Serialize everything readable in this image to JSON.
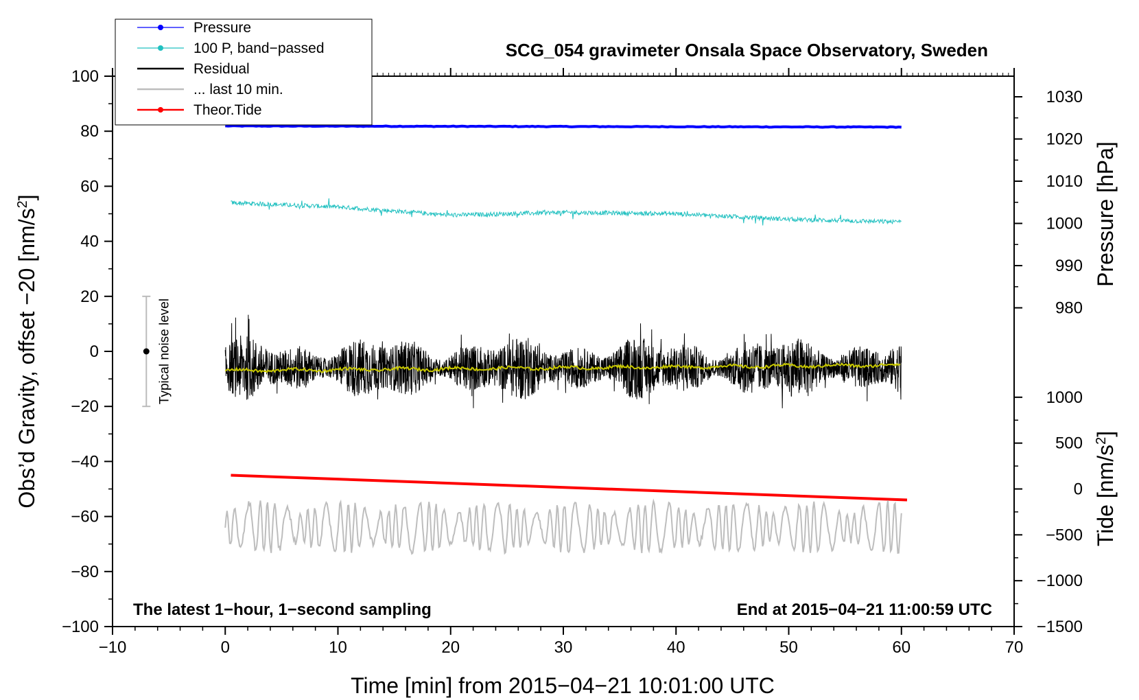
{
  "chart_data": {
    "type": "line",
    "title": "SCG_054 gravimeter Onsala Space Observatory, Sweden",
    "xlabel": "Time [min] from 2015−04−21 10:01:00 UTC",
    "ylabel": "Obs’d Gravity, offset −20 [nm/s²]",
    "ylabel_main": "Obs’d Gravity, offset −20 [nm/s",
    "ylabel_sup": "2",
    "ylabel_tail": "]",
    "xlim": [
      -10,
      70
    ],
    "ylim": [
      -100,
      100
    ],
    "x_ticks": [
      -10,
      0,
      10,
      20,
      30,
      40,
      50,
      60,
      70
    ],
    "x_tick_labels": [
      "−10",
      "0",
      "10",
      "20",
      "30",
      "40",
      "50",
      "60",
      "70"
    ],
    "y_ticks": [
      -100,
      -80,
      -60,
      -40,
      -20,
      0,
      20,
      40,
      60,
      80,
      100
    ],
    "y_tick_labels": [
      "−100",
      "−80",
      "−60",
      "−40",
      "−20",
      "0",
      "20",
      "40",
      "60",
      "80",
      "100"
    ],
    "right_axes": {
      "pressure": {
        "label": "Pressure [hPa]",
        "ticks": [
          980,
          990,
          1000,
          1010,
          1020,
          1030
        ],
        "tick_labels": [
          "980",
          "990",
          "1000",
          "1010",
          "1020",
          "1030"
        ],
        "ref_value": 1000,
        "ref_left_y": 46.5,
        "units_per_left": 0.652
      },
      "tide": {
        "label_main": "Tide [nm/s",
        "label_sup": "2",
        "label_tail": "]",
        "ticks": [
          -1500,
          -1000,
          -500,
          0,
          500,
          1000
        ],
        "tick_labels": [
          "−1500",
          "−1000",
          "−500",
          "0",
          "500",
          "1000"
        ],
        "ref_value": 0,
        "ref_left_y": -50,
        "units_per_left": 30
      }
    },
    "legend": {
      "position": "top-left",
      "entries": [
        {
          "label": "Pressure",
          "color": "#0000ff",
          "marker": true
        },
        {
          "label": "100 P, band−passed",
          "color": "#20c0c0",
          "marker": true
        },
        {
          "label": "Residual",
          "color": "#000000",
          "marker": false
        },
        {
          "label": "... last 10 min.",
          "color": "#bdbdbd",
          "marker": false
        },
        {
          "label": "Theor.Tide",
          "color": "#ff0000",
          "marker": true
        }
      ]
    },
    "annotations": {
      "left": "The latest 1−hour, 1−second sampling",
      "right": "End at 2015−04−21 11:00:59 UTC",
      "noise_label": "Typical noise level",
      "noise_range": [
        -20,
        20
      ],
      "noise_x": -7
    },
    "series": [
      {
        "name": "Pressure",
        "color": "#0000ff",
        "x_range": [
          0,
          60
        ],
        "start": 81.9,
        "end": 81.5
      },
      {
        "name": "100 P, band-passed",
        "color": "#20c0c0",
        "x_range": [
          0.5,
          60
        ],
        "points": [
          [
            0.5,
            54.0
          ],
          [
            10,
            52.5
          ],
          [
            20,
            49.5
          ],
          [
            30,
            50.5
          ],
          [
            40,
            50.0
          ],
          [
            50,
            48.0
          ],
          [
            60,
            47.0
          ]
        ]
      },
      {
        "name": "Residual",
        "color": "#000000",
        "x_range": [
          0,
          60
        ],
        "center": -6,
        "amplitude_typical": 10
      },
      {
        "name": "Residual smoothed",
        "color": "#c8c800",
        "x_range": [
          0,
          60
        ],
        "start": -7,
        "end": -5
      },
      {
        "name": "Theor.Tide",
        "color": "#ff0000",
        "x_range": [
          0.5,
          60.5
        ],
        "start": -45,
        "end": -54
      },
      {
        "name": "... last 10 min.",
        "color": "#bdbdbd",
        "x_range": [
          0,
          60
        ],
        "center": -64,
        "amplitude_typical": 6
      }
    ]
  }
}
